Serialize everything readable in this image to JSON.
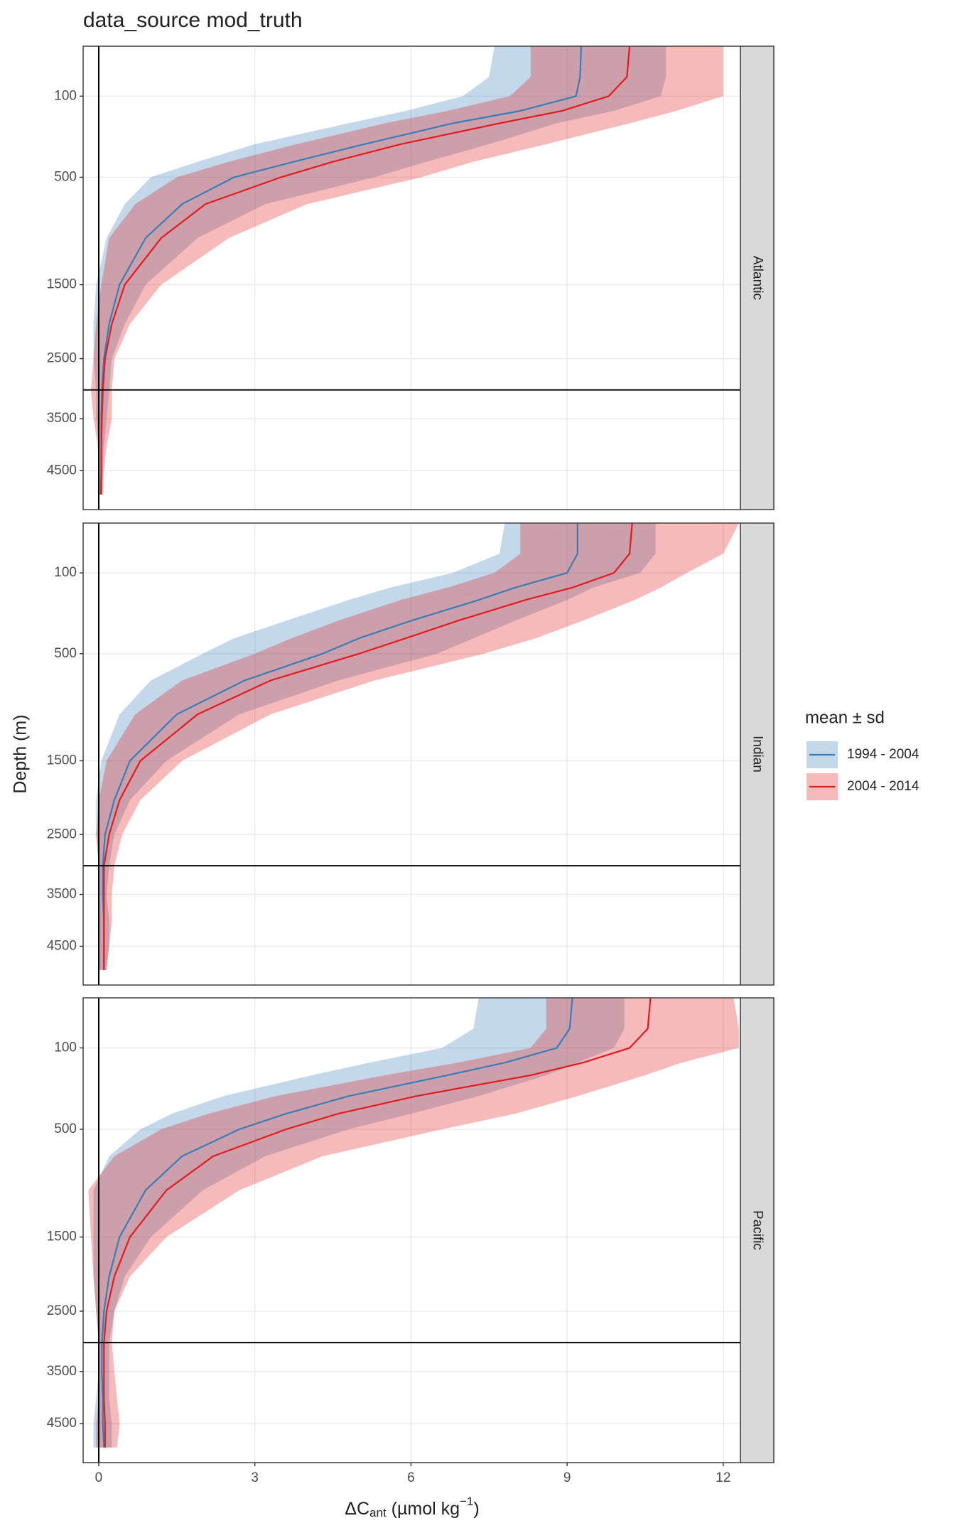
{
  "chart_data": {
    "type": "ribbon-line",
    "title": "data_source mod_truth",
    "y_label": "Depth (m)",
    "x_label": [
      "ΔC",
      "ant",
      " (µmol kg",
      "−1",
      ")"
    ],
    "legend_title": "mean ± sd",
    "xlim": [
      -0.3,
      12.33
    ],
    "xticks": [
      0,
      3,
      6,
      9,
      12
    ],
    "ylim": [
      5.7,
      5330
    ],
    "yticks": [
      100,
      500,
      1500,
      2500,
      3500,
      4500
    ],
    "y_scale": "sqrt",
    "y_reversed": true,
    "grid": true,
    "vline": 0,
    "hline": 3000,
    "depth": [
      6,
      50,
      100,
      150,
      200,
      300,
      400,
      500,
      700,
      1000,
      1500,
      2000,
      2500,
      3000,
      3500,
      4000,
      4500,
      5000
    ],
    "series": [
      {
        "name": "1994 - 2004",
        "color": "#377eb8"
      },
      {
        "name": "2004 - 2014",
        "color": "#e41a1c"
      }
    ],
    "facets": [
      {
        "name": "Atlantic",
        "data": [
          {
            "values": [
              9.27,
              9.25,
              9.17,
              8.1,
              6.8,
              5.1,
              3.75,
              2.6,
              1.6,
              0.9,
              0.4,
              0.2,
              0.1,
              0.06,
              0.05,
              0.05,
              0.05,
              0.05
            ],
            "lower": [
              7.6,
              7.5,
              7.0,
              5.9,
              4.8,
              3.0,
              1.9,
              1.0,
              0.5,
              0.15,
              -0.05,
              -0.1,
              -0.1,
              -0.05,
              -0.05,
              0,
              0,
              0
            ],
            "upper": [
              10.9,
              10.9,
              10.8,
              9.9,
              8.8,
              7.5,
              6.3,
              5.3,
              3.2,
              1.9,
              0.9,
              0.5,
              0.25,
              0.2,
              0.15,
              0.1,
              0.08,
              0.06
            ]
          },
          {
            "values": [
              10.2,
              10.15,
              9.8,
              8.9,
              7.7,
              5.8,
              4.5,
              3.5,
              2.05,
              1.2,
              0.5,
              0.25,
              0.12,
              0.08,
              0.06,
              0.05,
              0.05,
              0.04
            ],
            "lower": [
              8.3,
              8.3,
              7.9,
              6.7,
              5.5,
              3.8,
              2.5,
              1.5,
              0.7,
              0.2,
              0.05,
              -0.05,
              -0.1,
              -0.15,
              -0.1,
              -0.02,
              0,
              0
            ],
            "upper": [
              12.0,
              12.0,
              12.0,
              11.1,
              10.2,
              8.6,
              7.2,
              6.2,
              4.0,
              2.5,
              1.2,
              0.6,
              0.3,
              0.25,
              0.25,
              0.15,
              0.1,
              0.08
            ]
          }
        ]
      },
      {
        "name": "Indian",
        "data": [
          {
            "values": [
              9.2,
              9.2,
              9.0,
              8.0,
              7.3,
              6.0,
              5.0,
              4.3,
              2.8,
              1.5,
              0.6,
              0.3,
              0.12,
              0.08,
              0.08,
              0.1,
              0.1,
              0.1
            ],
            "lower": [
              7.8,
              7.7,
              6.8,
              5.6,
              4.8,
              3.6,
              2.6,
              2.0,
              1.0,
              0.4,
              0.05,
              -0.05,
              -0.05,
              0,
              0,
              0,
              0,
              0
            ],
            "upper": [
              10.7,
              10.7,
              10.4,
              9.5,
              9.0,
              8.0,
              7.2,
              6.5,
              4.6,
              2.7,
              1.3,
              0.6,
              0.3,
              0.2,
              0.15,
              0.2,
              0.2,
              0.15
            ]
          },
          {
            "values": [
              10.25,
              10.2,
              9.9,
              9.1,
              8.2,
              6.9,
              5.9,
              5.0,
              3.3,
              1.9,
              0.8,
              0.4,
              0.2,
              0.1,
              0.1,
              0.1,
              0.1,
              0.1
            ],
            "lower": [
              8.1,
              8.1,
              7.6,
              6.7,
              5.8,
              4.6,
              3.7,
              3.0,
              1.6,
              0.7,
              0.15,
              0,
              -0.05,
              0,
              0,
              0,
              0,
              0
            ],
            "upper": [
              12.3,
              12.0,
              11.3,
              10.8,
              10.3,
              9.3,
              8.4,
              7.4,
              5.3,
              3.3,
              1.6,
              0.8,
              0.45,
              0.3,
              0.25,
              0.25,
              0.2,
              0.15
            ]
          }
        ]
      },
      {
        "name": "Pacific",
        "data": [
          {
            "values": [
              9.1,
              9.05,
              8.8,
              7.8,
              6.7,
              4.8,
              3.6,
              2.7,
              1.6,
              0.9,
              0.4,
              0.2,
              0.1,
              0.06,
              0.06,
              0.08,
              0.08,
              0.1
            ],
            "lower": [
              7.3,
              7.2,
              6.6,
              5.2,
              4.1,
              2.4,
              1.4,
              0.8,
              0.2,
              -0.1,
              -0.1,
              -0.1,
              -0.05,
              0,
              0,
              -0.05,
              -0.1,
              -0.1
            ],
            "upper": [
              10.1,
              10.1,
              9.9,
              9.2,
              8.6,
              7.3,
              6.0,
              4.8,
              3.2,
              2.0,
              1.0,
              0.5,
              0.3,
              0.2,
              0.2,
              0.2,
              0.25,
              0.25
            ]
          },
          {
            "values": [
              10.6,
              10.55,
              10.2,
              9.3,
              8.3,
              6.1,
              4.6,
              3.6,
              2.2,
              1.3,
              0.6,
              0.3,
              0.15,
              0.1,
              0.1,
              0.1,
              0.12,
              0.12
            ],
            "lower": [
              8.6,
              8.6,
              8.3,
              6.9,
              5.5,
              3.4,
              2.1,
              1.2,
              0.3,
              -0.2,
              -0.15,
              -0.1,
              -0.05,
              0,
              0,
              0,
              -0.05,
              -0.05
            ],
            "upper": [
              12.2,
              12.3,
              12.3,
              11.2,
              10.5,
              9.2,
              8.0,
              6.6,
              4.3,
              2.7,
              1.3,
              0.6,
              0.3,
              0.25,
              0.3,
              0.35,
              0.4,
              0.35
            ]
          }
        ]
      }
    ]
  }
}
